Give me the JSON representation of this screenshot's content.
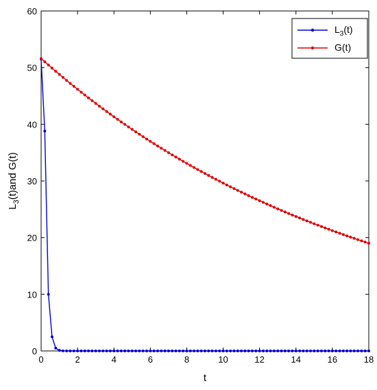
{
  "chart_data": {
    "type": "line",
    "xlabel": "t",
    "ylabel": {
      "main": "L",
      "sub": "3",
      "rest": "(t)and G(t)"
    },
    "xlim": [
      0,
      18
    ],
    "ylim": [
      0,
      60
    ],
    "xticks": [
      0,
      2,
      4,
      6,
      8,
      10,
      12,
      14,
      16,
      18
    ],
    "yticks": [
      0,
      10,
      20,
      30,
      40,
      50,
      60
    ],
    "grid": false,
    "legend_position": "top-right",
    "series": [
      {
        "name": "L3(t)",
        "legend_label": {
          "main": "L",
          "sub": "3",
          "rest": "(t)"
        },
        "color": "#0000cc",
        "marker": "dot",
        "x_start": 0,
        "x_end": 18,
        "x_step": 0.2,
        "points": [
          [
            0,
            51.5
          ],
          [
            0.2,
            38.8
          ],
          [
            0.4,
            10.0
          ],
          [
            0.6,
            2.5
          ],
          [
            0.8,
            0.5
          ],
          [
            1.0,
            0.1
          ],
          [
            1.2,
            0.02
          ]
        ],
        "tail_value": 0
      },
      {
        "name": "G(t)",
        "legend_label": {
          "main": "G(t)",
          "sub": "",
          "rest": ""
        },
        "color": "#dd0000",
        "marker": "dot",
        "x_start": 0,
        "x_end": 18,
        "x_step": 0.2,
        "y_start": 51.6,
        "y_end": 19.0
      }
    ]
  }
}
